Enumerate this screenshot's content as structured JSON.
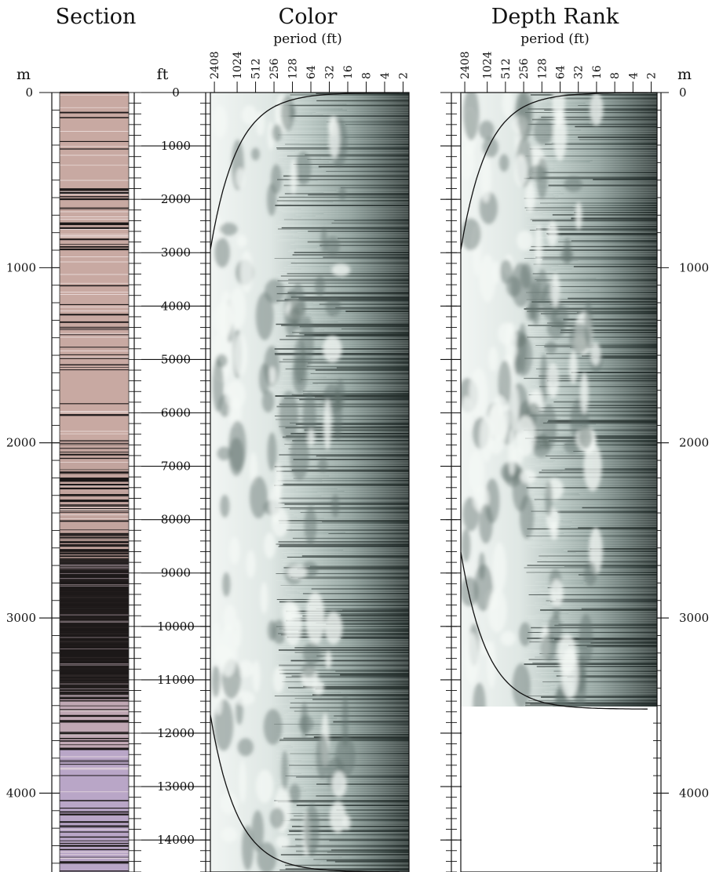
{
  "chart_data": [
    {
      "type": "section-column",
      "title": "Section",
      "depth_unit_m": "m",
      "depth_unit_ft": "ft",
      "depth_range_ft": [
        0,
        14600
      ],
      "m_ticks": [
        0,
        1000,
        2000,
        3000,
        4000
      ],
      "ft_ticks": [
        0,
        1000,
        2000,
        3000,
        4000,
        5000,
        6000,
        7000,
        8000,
        9000,
        10000,
        11000,
        12000,
        13000,
        14000
      ],
      "intervals": [
        {
          "from_ft": 0,
          "to_ft": 6500,
          "color": "#c8a9a2",
          "dark_band_density": 0.15
        },
        {
          "from_ft": 6500,
          "to_ft": 8750,
          "color": "#c2a49e",
          "dark_band_density": 0.45
        },
        {
          "from_ft": 8750,
          "to_ft": 11300,
          "color": "#2a2424",
          "dark_band_density": 0.75
        },
        {
          "from_ft": 11300,
          "to_ft": 12300,
          "color": "#c0a8b4",
          "dark_band_density": 0.3
        },
        {
          "from_ft": 12300,
          "to_ft": 14600,
          "color": "#b9a6c7",
          "dark_band_density": 0.2
        }
      ]
    },
    {
      "type": "heatmap",
      "title": "Color",
      "subtitle": "period (ft)",
      "ylabel": "ft",
      "x_scale": "log2-reversed",
      "xlim": [
        2800,
        1.6
      ],
      "x_ticks": [
        "2408",
        "1024",
        "512",
        "256",
        "128",
        "64",
        "32",
        "16",
        "8",
        "4",
        "2"
      ],
      "ylim": [
        0,
        14600
      ],
      "depth_extent_ft": 14600,
      "cone_of_influence": "curve"
    },
    {
      "type": "heatmap",
      "title": "Depth Rank",
      "subtitle": "period (ft)",
      "ylabel": "m",
      "x_scale": "log2-reversed",
      "xlim": [
        2800,
        1.6
      ],
      "x_ticks": [
        "2408",
        "1024",
        "512",
        "256",
        "128",
        "64",
        "32",
        "16",
        "8",
        "4",
        "2"
      ],
      "y_ticks_m": [
        0,
        1000,
        2000,
        3000,
        4000
      ],
      "ylim": [
        0,
        14600
      ],
      "depth_extent_ft": 11550,
      "cone_of_influence": "curve"
    }
  ],
  "labels": {
    "section_title": "Section",
    "color_title": "Color",
    "color_subtitle": "period (ft)",
    "rank_title": "Depth Rank",
    "rank_subtitle": "period (ft)",
    "unit_m_left": "m",
    "unit_ft": "ft",
    "unit_m_right": "m"
  },
  "colors": {
    "section_pink": "#c8a9a2",
    "section_purple": "#b9a6c7",
    "section_dark": "#1f1a1a",
    "spectrum_light": "#eef3f1",
    "spectrum_dark": "#2f3937"
  }
}
